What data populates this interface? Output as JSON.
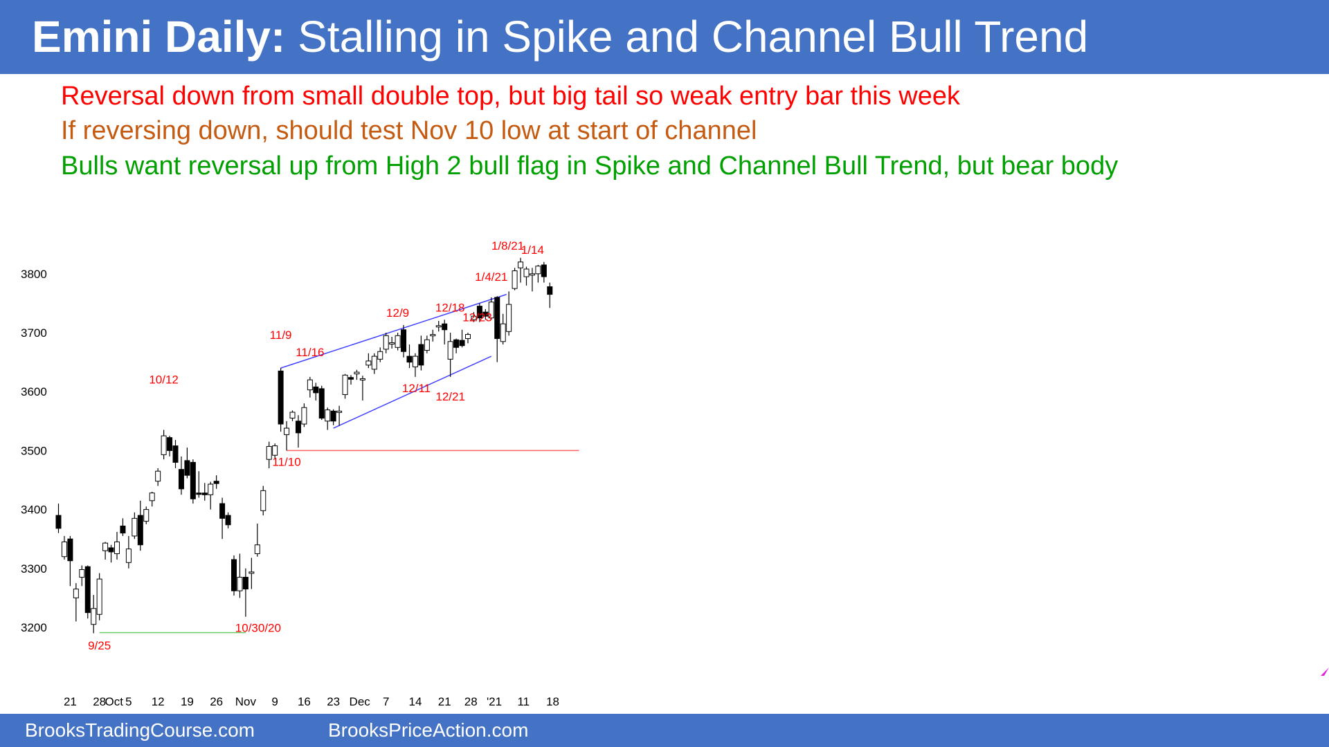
{
  "slide": {
    "title_bold": "Emini Daily:",
    "title_rest": "Stalling in Spike and Channel Bull Trend",
    "notes": [
      {
        "text": "Reversal down from small double top, but big tail so weak entry bar this week",
        "color": "#ff0000"
      },
      {
        "text": "If reversing down, should test Nov 10 low at start of channel",
        "color": "#c55a11"
      },
      {
        "text": "Bulls want reversal up from High 2 bull flag in Spike and Channel Bull Trend, but bear body",
        "color": "#00a000"
      }
    ],
    "footer": {
      "left": "BrooksTradingCourse.com",
      "right": "BrooksPriceAction.com"
    }
  },
  "chart_data": {
    "type": "candlestick",
    "title": "Emini Daily",
    "yticks": [
      3200,
      3300,
      3400,
      3500,
      3600,
      3700,
      3800
    ],
    "ylim": [
      3150,
      3850
    ],
    "xticks": [
      {
        "i": 2,
        "label": "21"
      },
      {
        "i": 7,
        "label": "28"
      },
      {
        "i": 9.5,
        "label": "Oct"
      },
      {
        "i": 12,
        "label": "5"
      },
      {
        "i": 17,
        "label": "12"
      },
      {
        "i": 22,
        "label": "19"
      },
      {
        "i": 27,
        "label": "26"
      },
      {
        "i": 32,
        "label": "Nov"
      },
      {
        "i": 37,
        "label": "9"
      },
      {
        "i": 42,
        "label": "16"
      },
      {
        "i": 47,
        "label": "23"
      },
      {
        "i": 51.5,
        "label": "Dec"
      },
      {
        "i": 56,
        "label": "7"
      },
      {
        "i": 61,
        "label": "14"
      },
      {
        "i": 66,
        "label": "21"
      },
      {
        "i": 70.5,
        "label": "28"
      },
      {
        "i": 74.5,
        "label": "'21"
      },
      {
        "i": 79.5,
        "label": "11"
      },
      {
        "i": 84.5,
        "label": "18"
      }
    ],
    "bars": [
      {
        "d": "9/16",
        "o": 3390,
        "h": 3410,
        "l": 3360,
        "c": 3368
      },
      {
        "d": "9/17",
        "o": 3320,
        "h": 3355,
        "l": 3315,
        "c": 3345
      },
      {
        "d": "9/18",
        "o": 3350,
        "h": 3355,
        "l": 3270,
        "c": 3313
      },
      {
        "d": "9/21",
        "o": 3250,
        "h": 3275,
        "l": 3210,
        "c": 3265
      },
      {
        "d": "9/22",
        "o": 3285,
        "h": 3305,
        "l": 3270,
        "c": 3298
      },
      {
        "d": "9/23",
        "o": 3303,
        "h": 3305,
        "l": 3215,
        "c": 3225
      },
      {
        "d": "9/24",
        "o": 3205,
        "h": 3255,
        "l": 3190,
        "c": 3232
      },
      {
        "d": "9/25",
        "o": 3222,
        "h": 3292,
        "l": 3212,
        "c": 3282
      },
      {
        "d": "9/28",
        "o": 3330,
        "h": 3345,
        "l": 3315,
        "c": 3343
      },
      {
        "d": "9/29",
        "o": 3335,
        "h": 3340,
        "l": 3310,
        "c": 3328
      },
      {
        "d": "9/30",
        "o": 3325,
        "h": 3362,
        "l": 3315,
        "c": 3345
      },
      {
        "d": "10/1",
        "o": 3372,
        "h": 3385,
        "l": 3355,
        "c": 3360
      },
      {
        "d": "10/2",
        "o": 3310,
        "h": 3355,
        "l": 3300,
        "c": 3333
      },
      {
        "d": "10/5",
        "o": 3355,
        "h": 3395,
        "l": 3350,
        "c": 3385
      },
      {
        "d": "10/6",
        "o": 3390,
        "h": 3415,
        "l": 3330,
        "c": 3340
      },
      {
        "d": "10/7",
        "o": 3380,
        "h": 3405,
        "l": 3375,
        "c": 3400
      },
      {
        "d": "10/8",
        "o": 3415,
        "h": 3430,
        "l": 3405,
        "c": 3428
      },
      {
        "d": "10/9",
        "o": 3448,
        "h": 3470,
        "l": 3440,
        "c": 3465
      },
      {
        "d": "10/12",
        "o": 3493,
        "h": 3535,
        "l": 3485,
        "c": 3525
      },
      {
        "d": "10/13",
        "o": 3522,
        "h": 3525,
        "l": 3490,
        "c": 3500
      },
      {
        "d": "10/14",
        "o": 3508,
        "h": 3518,
        "l": 3470,
        "c": 3480
      },
      {
        "d": "10/15",
        "o": 3468,
        "h": 3490,
        "l": 3425,
        "c": 3435
      },
      {
        "d": "10/16",
        "o": 3483,
        "h": 3505,
        "l": 3453,
        "c": 3458
      },
      {
        "d": "10/19",
        "o": 3480,
        "h": 3485,
        "l": 3410,
        "c": 3418
      },
      {
        "d": "10/20",
        "o": 3428,
        "h": 3465,
        "l": 3420,
        "c": 3426
      },
      {
        "d": "10/21",
        "o": 3428,
        "h": 3445,
        "l": 3415,
        "c": 3425
      },
      {
        "d": "10/22",
        "o": 3425,
        "h": 3447,
        "l": 3400,
        "c": 3443
      },
      {
        "d": "10/23",
        "o": 3448,
        "h": 3458,
        "l": 3435,
        "c": 3444
      },
      {
        "d": "10/26",
        "o": 3410,
        "h": 3420,
        "l": 3350,
        "c": 3385
      },
      {
        "d": "10/27",
        "o": 3390,
        "h": 3395,
        "l": 3368,
        "c": 3374
      },
      {
        "d": "10/28",
        "o": 3315,
        "h": 3322,
        "l": 3254,
        "c": 3262
      },
      {
        "d": "10/29",
        "o": 3262,
        "h": 3325,
        "l": 3250,
        "c": 3285
      },
      {
        "d": "10/30",
        "o": 3285,
        "h": 3300,
        "l": 3218,
        "c": 3265
      },
      {
        "d": "11/2",
        "o": 3292,
        "h": 3318,
        "l": 3265,
        "c": 3294
      },
      {
        "d": "11/3",
        "o": 3325,
        "h": 3376,
        "l": 3320,
        "c": 3340
      },
      {
        "d": "11/4",
        "o": 3398,
        "h": 3440,
        "l": 3390,
        "c": 3432
      },
      {
        "d": "11/5",
        "o": 3485,
        "h": 3515,
        "l": 3470,
        "c": 3507
      },
      {
        "d": "11/6",
        "o": 3492,
        "h": 3512,
        "l": 3485,
        "c": 3508
      },
      {
        "d": "11/9",
        "o": 3635,
        "h": 3640,
        "l": 3532,
        "c": 3545
      },
      {
        "d": "11/10",
        "o": 3527,
        "h": 3550,
        "l": 3500,
        "c": 3538
      },
      {
        "d": "11/11",
        "o": 3555,
        "h": 3568,
        "l": 3550,
        "c": 3565
      },
      {
        "d": "11/12",
        "o": 3550,
        "h": 3560,
        "l": 3505,
        "c": 3530
      },
      {
        "d": "11/13",
        "o": 3545,
        "h": 3580,
        "l": 3540,
        "c": 3573
      },
      {
        "d": "11/16",
        "o": 3603,
        "h": 3625,
        "l": 3590,
        "c": 3620
      },
      {
        "d": "11/17",
        "o": 3608,
        "h": 3615,
        "l": 3585,
        "c": 3598
      },
      {
        "d": "11/18",
        "o": 3605,
        "h": 3610,
        "l": 3552,
        "c": 3555
      },
      {
        "d": "11/19",
        "o": 3550,
        "h": 3573,
        "l": 3535,
        "c": 3569
      },
      {
        "d": "11/20",
        "o": 3567,
        "h": 3570,
        "l": 3543,
        "c": 3550
      },
      {
        "d": "11/23",
        "o": 3565,
        "h": 3576,
        "l": 3542,
        "c": 3567
      },
      {
        "d": "11/24",
        "o": 3595,
        "h": 3630,
        "l": 3588,
        "c": 3628
      },
      {
        "d": "11/25",
        "o": 3624,
        "h": 3628,
        "l": 3612,
        "c": 3621
      },
      {
        "d": "11/27",
        "o": 3630,
        "h": 3637,
        "l": 3620,
        "c": 3633
      },
      {
        "d": "11/30",
        "o": 3620,
        "h": 3627,
        "l": 3585,
        "c": 3622
      },
      {
        "d": "12/1",
        "o": 3645,
        "h": 3665,
        "l": 3640,
        "c": 3652
      },
      {
        "d": "12/2",
        "o": 3638,
        "h": 3665,
        "l": 3630,
        "c": 3660
      },
      {
        "d": "12/3",
        "o": 3655,
        "h": 3675,
        "l": 3650,
        "c": 3668
      },
      {
        "d": "12/4",
        "o": 3672,
        "h": 3700,
        "l": 3665,
        "c": 3695
      },
      {
        "d": "12/7",
        "o": 3682,
        "h": 3693,
        "l": 3673,
        "c": 3683
      },
      {
        "d": "12/8",
        "o": 3675,
        "h": 3700,
        "l": 3670,
        "c": 3695
      },
      {
        "d": "12/9",
        "o": 3705,
        "h": 3713,
        "l": 3658,
        "c": 3668
      },
      {
        "d": "12/10",
        "o": 3660,
        "h": 3680,
        "l": 3640,
        "c": 3650
      },
      {
        "d": "12/11",
        "o": 3642,
        "h": 3665,
        "l": 3625,
        "c": 3660
      },
      {
        "d": "12/14",
        "o": 3680,
        "h": 3695,
        "l": 3636,
        "c": 3645
      },
      {
        "d": "12/15",
        "o": 3670,
        "h": 3695,
        "l": 3665,
        "c": 3688
      },
      {
        "d": "12/16",
        "o": 3695,
        "h": 3705,
        "l": 3685,
        "c": 3697
      },
      {
        "d": "12/17",
        "o": 3710,
        "h": 3720,
        "l": 3702,
        "c": 3712
      },
      {
        "d": "12/18",
        "o": 3715,
        "h": 3722,
        "l": 3680,
        "c": 3705
      },
      {
        "d": "12/21",
        "o": 3655,
        "h": 3700,
        "l": 3625,
        "c": 3685
      },
      {
        "d": "12/22",
        "o": 3688,
        "h": 3690,
        "l": 3665,
        "c": 3675
      },
      {
        "d": "12/23",
        "o": 3687,
        "h": 3705,
        "l": 3675,
        "c": 3678
      },
      {
        "d": "12/24",
        "o": 3690,
        "h": 3700,
        "l": 3682,
        "c": 3697
      },
      {
        "d": "12/28",
        "o": 3722,
        "h": 3735,
        "l": 3718,
        "c": 3728
      },
      {
        "d": "12/29",
        "o": 3745,
        "h": 3750,
        "l": 3718,
        "c": 3725
      },
      {
        "d": "12/30",
        "o": 3735,
        "h": 3740,
        "l": 3722,
        "c": 3728
      },
      {
        "d": "12/31",
        "o": 3725,
        "h": 3760,
        "l": 3722,
        "c": 3752
      },
      {
        "d": "1/4",
        "o": 3760,
        "h": 3762,
        "l": 3650,
        "c": 3690
      },
      {
        "d": "1/5",
        "o": 3685,
        "h": 3732,
        "l": 3680,
        "c": 3715
      },
      {
        "d": "1/6",
        "o": 3702,
        "h": 3770,
        "l": 3695,
        "c": 3748
      },
      {
        "d": "1/7",
        "o": 3775,
        "h": 3810,
        "l": 3772,
        "c": 3805
      },
      {
        "d": "1/8",
        "o": 3810,
        "h": 3827,
        "l": 3785,
        "c": 3820
      },
      {
        "d": "1/11",
        "o": 3795,
        "h": 3812,
        "l": 3780,
        "c": 3808
      },
      {
        "d": "1/12",
        "o": 3800,
        "h": 3810,
        "l": 3770,
        "c": 3800
      },
      {
        "d": "1/13",
        "o": 3800,
        "h": 3815,
        "l": 3785,
        "c": 3813
      },
      {
        "d": "1/14",
        "o": 3815,
        "h": 3820,
        "l": 3785,
        "c": 3795
      },
      {
        "d": "1/15",
        "o": 3778,
        "h": 3785,
        "l": 3742,
        "c": 3765
      }
    ],
    "annotations": [
      {
        "text": "9/25",
        "i": 7,
        "price": 3188,
        "pos": "below"
      },
      {
        "text": "10/12",
        "i": 18,
        "price": 3535,
        "pos": "above",
        "dy": 55
      },
      {
        "text": "10/30/20",
        "i": 32,
        "price": 3218,
        "pos": "below",
        "dx": 18
      },
      {
        "text": "11/9",
        "i": 38,
        "price": 3640,
        "pos": "above",
        "dy": 30
      },
      {
        "text": "11/10",
        "i": 39,
        "price": 3500,
        "pos": "below"
      },
      {
        "text": "11/16",
        "i": 43,
        "price": 3625,
        "pos": "above",
        "dy": 18
      },
      {
        "text": "12/9",
        "i": 58,
        "price": 3713,
        "pos": "above"
      },
      {
        "text": "12/11",
        "i": 60,
        "price": 3625,
        "pos": "below",
        "dx": 10
      },
      {
        "text": "12/18",
        "i": 66,
        "price": 3722,
        "pos": "above",
        "dx": 8
      },
      {
        "text": "12/21",
        "i": 67,
        "price": 3625,
        "pos": "below",
        "dy": 12
      },
      {
        "text": "12/23",
        "i": 69,
        "price": 3705,
        "pos": "above",
        "dx": 22
      },
      {
        "text": "1/4/21",
        "i": 74,
        "price": 3762,
        "pos": "above",
        "dy": 10
      },
      {
        "text": "1/8/21",
        "i": 78,
        "price": 3827,
        "pos": "above",
        "dx": -10
      },
      {
        "text": "1/14",
        "i": 82,
        "price": 3820,
        "pos": "above",
        "dx": -8
      }
    ],
    "lines": [
      {
        "name": "channel-top-line",
        "i1": 38,
        "p1": 3640,
        "i2": 76.6,
        "p2": 3765,
        "color": "#4040ff"
      },
      {
        "name": "channel-bottom-line",
        "i1": 47,
        "p1": 3538,
        "i2": 74,
        "p2": 3660,
        "color": "#4040ff"
      },
      {
        "name": "nov10-low-line",
        "i1": 39,
        "p1": 3500,
        "i2": 89,
        "p2": 3500,
        "color": "#ff6060"
      },
      {
        "name": "sept-low-line",
        "i1": 7,
        "p1": 3191,
        "i2": 32,
        "p2": 3191,
        "color": "#66cc66"
      }
    ]
  }
}
